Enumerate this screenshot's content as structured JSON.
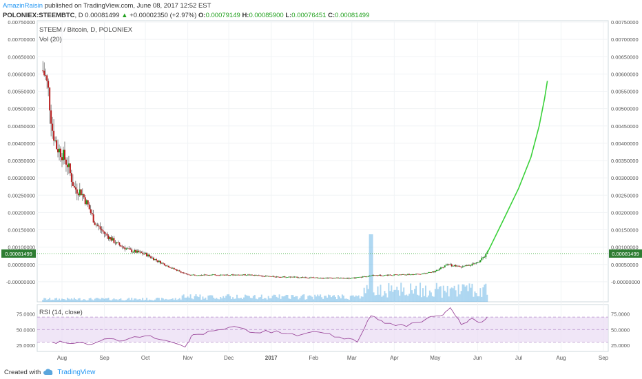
{
  "header": {
    "author": "AmazinRaisin",
    "published_text": " published on TradingView.com, June 08, 2017 12:52 EST",
    "symbol": "POLONIEX:STEEMBTC",
    "interval": ", D ",
    "last_price": "0.00081499",
    "change": "+0.00002350 (+2.97%)",
    "o_label": "O:",
    "o_value": "0.00079149",
    "h_label": "H:",
    "h_value": "0.00085900",
    "l_label": "L:",
    "l_value": "0.00076451",
    "c_label": "C:",
    "c_value": "0.00081499"
  },
  "main_pane": {
    "legend": "STEEM / Bitcoin, D, POLONIEX",
    "volume_label": "Vol (20)"
  },
  "rsi_pane": {
    "legend": "RSI (14, close)"
  },
  "footer": {
    "created_with": "Created with",
    "brand": "TradingView"
  },
  "colors": {
    "up": "#21a11e",
    "down": "#b71c1c",
    "projection": "#3ad13a",
    "rsi_line": "#9c4a9c",
    "rsi_band": "#e9dbf3",
    "volume": "#6bb6e6",
    "price_tag": "#2e7d32"
  },
  "chart_data": [
    {
      "type": "candlestick",
      "title": "STEEM / Bitcoin, D, POLONIEX",
      "ylim": [
        -0.0003,
        0.0075
      ],
      "y_ticks": [
        "-0.00000000",
        "0.00050000",
        "0.00100000",
        "0.00150000",
        "0.00200000",
        "0.00250000",
        "0.00300000",
        "0.00350000",
        "0.00400000",
        "0.00450000",
        "0.00500000",
        "0.00550000",
        "0.00600000",
        "0.00650000",
        "0.00700000",
        "0.00750000"
      ],
      "x_ticks": [
        "Aug",
        "Sep",
        "Oct",
        "Nov",
        "Dec",
        "2017",
        "Feb",
        "Mar",
        "Apr",
        "May",
        "Jun",
        "Jul",
        "Aug",
        "Sep"
      ],
      "last_value_tag": "0.00081499",
      "price_path": [
        [
          "2016-07-18",
          0.0061
        ],
        [
          "2016-07-20",
          0.0059
        ],
        [
          "2016-07-22",
          0.0055
        ],
        [
          "2016-07-25",
          0.0044
        ],
        [
          "2016-07-28",
          0.0039
        ],
        [
          "2016-08-01",
          0.0037
        ],
        [
          "2016-08-05",
          0.0034
        ],
        [
          "2016-08-10",
          0.0027
        ],
        [
          "2016-08-15",
          0.0026
        ],
        [
          "2016-08-20",
          0.0022
        ],
        [
          "2016-08-25",
          0.0017
        ],
        [
          "2016-09-01",
          0.0014
        ],
        [
          "2016-09-10",
          0.0011
        ],
        [
          "2016-09-20",
          0.0009
        ],
        [
          "2016-10-01",
          0.0008
        ],
        [
          "2016-10-10",
          0.0006
        ],
        [
          "2016-10-20",
          0.0004
        ],
        [
          "2016-11-01",
          0.0002
        ],
        [
          "2016-11-15",
          0.0002
        ],
        [
          "2016-12-01",
          0.0002
        ],
        [
          "2016-12-15",
          0.0002
        ],
        [
          "2017-01-01",
          0.00015
        ],
        [
          "2017-02-01",
          0.00012
        ],
        [
          "2017-03-01",
          0.0001
        ],
        [
          "2017-03-15",
          0.00018
        ],
        [
          "2017-04-01",
          0.0002
        ],
        [
          "2017-04-20",
          0.00022
        ],
        [
          "2017-05-01",
          0.0003
        ],
        [
          "2017-05-10",
          0.0005
        ],
        [
          "2017-05-20",
          0.00042
        ],
        [
          "2017-06-01",
          0.00055
        ],
        [
          "2017-06-08",
          0.000815
        ]
      ],
      "projection": [
        [
          "2017-06-08",
          0.00083
        ],
        [
          "2017-06-20",
          0.0018
        ],
        [
          "2017-07-01",
          0.0027
        ],
        [
          "2017-07-10",
          0.0036
        ],
        [
          "2017-07-16",
          0.0045
        ],
        [
          "2017-07-20",
          0.0053
        ],
        [
          "2017-07-22",
          0.0058
        ]
      ]
    },
    {
      "type": "line",
      "title": "RSI (14, close)",
      "ylim": [
        15,
        90
      ],
      "y_ticks": [
        "75.0000",
        "50.0000",
        "25.0000"
      ],
      "band": [
        30,
        70
      ],
      "values": [
        [
          "2016-07-25",
          30
        ],
        [
          "2016-08-05",
          28
        ],
        [
          "2016-08-20",
          26
        ],
        [
          "2016-09-01",
          35
        ],
        [
          "2016-09-15",
          32
        ],
        [
          "2016-10-01",
          40
        ],
        [
          "2016-10-15",
          33
        ],
        [
          "2016-10-30",
          22
        ],
        [
          "2016-11-05",
          42
        ],
        [
          "2016-11-20",
          48
        ],
        [
          "2016-12-05",
          55
        ],
        [
          "2016-12-20",
          45
        ],
        [
          "2017-01-05",
          48
        ],
        [
          "2017-01-20",
          40
        ],
        [
          "2017-02-05",
          46
        ],
        [
          "2017-02-20",
          38
        ],
        [
          "2017-03-05",
          30
        ],
        [
          "2017-03-15",
          72
        ],
        [
          "2017-03-25",
          60
        ],
        [
          "2017-04-10",
          55
        ],
        [
          "2017-04-25",
          68
        ],
        [
          "2017-05-05",
          72
        ],
        [
          "2017-05-12",
          85
        ],
        [
          "2017-05-20",
          58
        ],
        [
          "2017-05-28",
          68
        ],
        [
          "2017-06-03",
          62
        ],
        [
          "2017-06-08",
          70
        ]
      ]
    }
  ]
}
